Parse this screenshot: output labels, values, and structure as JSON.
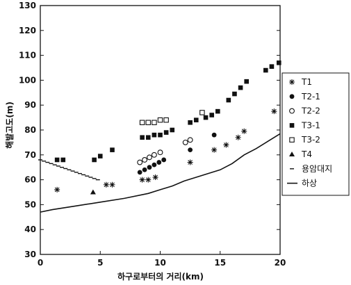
{
  "chart_data": {
    "type": "scatter",
    "xlabel": "하구로부터의 거리(km)",
    "ylabel": "해발고도(m)",
    "xlim": [
      0,
      20
    ],
    "ylim": [
      30,
      130
    ],
    "xticks": [
      0,
      5,
      10,
      15,
      20
    ],
    "yticks": [
      30,
      40,
      50,
      60,
      70,
      80,
      90,
      100,
      110,
      120,
      130
    ],
    "grid": false,
    "legend_position": "right",
    "series": [
      {
        "name": "T1",
        "marker": "asterisk",
        "mode": "markers",
        "points": [
          [
            1.4,
            56
          ],
          [
            5.5,
            58
          ],
          [
            6.0,
            58
          ],
          [
            8.5,
            60
          ],
          [
            9.0,
            60
          ],
          [
            9.6,
            61
          ],
          [
            12.5,
            67
          ],
          [
            14.5,
            72
          ],
          [
            15.5,
            74
          ],
          [
            16.5,
            77
          ],
          [
            17.0,
            79.5
          ],
          [
            19.5,
            87.5
          ]
        ]
      },
      {
        "name": "T2-1",
        "marker": "filled-circle",
        "mode": "markers",
        "points": [
          [
            8.3,
            63
          ],
          [
            8.7,
            64
          ],
          [
            9.1,
            65
          ],
          [
            9.5,
            66
          ],
          [
            9.9,
            67
          ],
          [
            10.3,
            68
          ],
          [
            12.5,
            72
          ],
          [
            14.5,
            78
          ]
        ]
      },
      {
        "name": "T2-2",
        "marker": "open-circle",
        "mode": "markers",
        "points": [
          [
            8.3,
            67
          ],
          [
            8.7,
            68
          ],
          [
            9.1,
            69
          ],
          [
            9.5,
            70
          ],
          [
            10.0,
            71
          ],
          [
            12.1,
            75
          ],
          [
            12.5,
            76
          ]
        ]
      },
      {
        "name": "T3-1",
        "marker": "filled-square",
        "mode": "markers",
        "points": [
          [
            1.4,
            68
          ],
          [
            1.9,
            68
          ],
          [
            4.5,
            68
          ],
          [
            5.0,
            69.5
          ],
          [
            6.0,
            72
          ],
          [
            8.5,
            77
          ],
          [
            9.0,
            77
          ],
          [
            9.5,
            78
          ],
          [
            10.0,
            78
          ],
          [
            10.5,
            79
          ],
          [
            11.0,
            80
          ],
          [
            12.5,
            83
          ],
          [
            13.0,
            84
          ],
          [
            13.8,
            85
          ],
          [
            14.3,
            86
          ],
          [
            14.8,
            87.5
          ],
          [
            15.7,
            92
          ],
          [
            16.2,
            94.5
          ],
          [
            16.7,
            97
          ],
          [
            17.2,
            99.5
          ],
          [
            18.8,
            104
          ],
          [
            19.3,
            105.5
          ],
          [
            19.9,
            107
          ]
        ]
      },
      {
        "name": "T3-2",
        "marker": "open-square",
        "mode": "markers",
        "points": [
          [
            8.5,
            83
          ],
          [
            9.0,
            83
          ],
          [
            9.5,
            83
          ],
          [
            10.0,
            84
          ],
          [
            10.5,
            84
          ],
          [
            13.5,
            87
          ]
        ]
      },
      {
        "name": "T4",
        "marker": "filled-triangle",
        "mode": "markers",
        "points": [
          [
            4.4,
            55
          ]
        ]
      },
      {
        "name": "용암대지",
        "marker": "dash",
        "mode": "markers",
        "points": [
          [
            0.0,
            68
          ],
          [
            0.3,
            67.5
          ],
          [
            0.6,
            67
          ],
          [
            0.9,
            66.5
          ],
          [
            1.2,
            66
          ],
          [
            1.5,
            65.5
          ],
          [
            1.8,
            65
          ],
          [
            2.1,
            64.5
          ],
          [
            2.4,
            64
          ],
          [
            2.7,
            63.5
          ],
          [
            3.0,
            63
          ],
          [
            3.3,
            62.5
          ],
          [
            3.6,
            62
          ],
          [
            3.9,
            61.5
          ],
          [
            4.2,
            61
          ],
          [
            4.5,
            60.5
          ],
          [
            4.8,
            60
          ]
        ]
      },
      {
        "name": "하상",
        "marker": "none",
        "mode": "line",
        "points": [
          [
            0,
            47
          ],
          [
            1,
            48
          ],
          [
            3,
            49.5
          ],
          [
            5,
            51
          ],
          [
            7,
            52.5
          ],
          [
            9,
            54.5
          ],
          [
            10,
            56
          ],
          [
            11,
            57.5
          ],
          [
            12,
            59.5
          ],
          [
            13,
            61
          ],
          [
            14,
            62.5
          ],
          [
            15,
            64
          ],
          [
            16,
            66.5
          ],
          [
            17,
            70
          ],
          [
            18,
            72.5
          ],
          [
            19,
            75.5
          ],
          [
            20,
            78.5
          ]
        ]
      }
    ]
  }
}
